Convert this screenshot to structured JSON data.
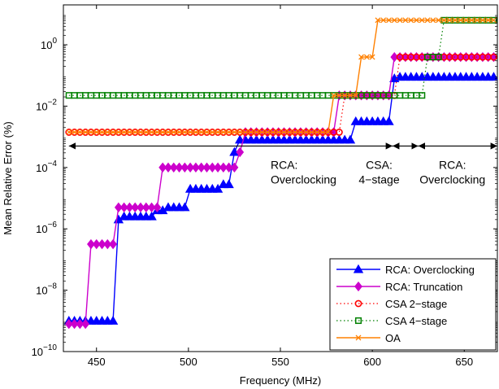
{
  "chart_data": {
    "type": "line",
    "xlabel": "Frequency (MHz)",
    "ylabel": "Mean Relative Error (%)",
    "xlim": [
      432,
      668
    ],
    "ylim_log10": [
      -10,
      1.3
    ],
    "y_scale": "log",
    "grid": false,
    "legend_position": "bottom-right",
    "x_ticks": [
      {
        "value": 450,
        "label": "450"
      },
      {
        "value": 500,
        "label": "500"
      },
      {
        "value": 550,
        "label": "550"
      },
      {
        "value": 600,
        "label": "600"
      },
      {
        "value": 650,
        "label": "650"
      }
    ],
    "y_ticks": [
      {
        "exp": 0,
        "base": "10",
        "label": "0"
      },
      {
        "exp": -2,
        "base": "10",
        "label": "−2"
      },
      {
        "exp": -4,
        "base": "10",
        "label": "−4"
      },
      {
        "exp": -6,
        "base": "10",
        "label": "−6"
      },
      {
        "exp": -8,
        "base": "10",
        "label": "−8"
      },
      {
        "exp": -10,
        "base": "10",
        "label": "−10"
      }
    ],
    "annotations": [
      {
        "id": "rca-overclocking-1",
        "lines": [
          "RCA:",
          "Overclocking"
        ],
        "x": 550,
        "y_exp": -4.05,
        "align": "start",
        "x_offset": -12
      },
      {
        "id": "csa-4stage",
        "lines": [
          "CSA:",
          "4−stage"
        ],
        "x": 609,
        "y_exp": -4.05,
        "align": "middle",
        "x_offset": -12
      },
      {
        "id": "rca-overclocking-2",
        "lines": [
          "RCA:",
          "Overclocking"
        ],
        "x": 648,
        "y_exp": -4.05,
        "align": "middle",
        "x_offset": -10
      }
    ],
    "range_arrows": [
      {
        "from": 435,
        "to": 611,
        "y_exp": -3.3
      },
      {
        "from": 611,
        "to": 625,
        "y_exp": -3.3
      },
      {
        "from": 625,
        "to": 668,
        "y_exp": -3.3
      }
    ],
    "series": [
      {
        "name": "RCA: Overclocking",
        "color": "#0000ff",
        "line_style": "solid",
        "marker": "triangle",
        "x": [
          435,
          438,
          441,
          444,
          447,
          450,
          453,
          456,
          459,
          462,
          465,
          468,
          471,
          474,
          477,
          480,
          483,
          486,
          489,
          492,
          495,
          498,
          501,
          504,
          507,
          510,
          513,
          516,
          519,
          522,
          525,
          528,
          531,
          534,
          537,
          540,
          543,
          546,
          549,
          552,
          555,
          558,
          561,
          564,
          567,
          570,
          573,
          576,
          579,
          582,
          585,
          588,
          591,
          594,
          597,
          600,
          603,
          606,
          609,
          612,
          615,
          618,
          621,
          624,
          627,
          630,
          633,
          636,
          639,
          642,
          645,
          648,
          651,
          654,
          657,
          660,
          663,
          666
        ],
        "y_exp": [
          -9,
          -9,
          -9,
          -9,
          -9,
          -9,
          -9,
          -9,
          -9,
          -5.7,
          -5.6,
          -5.6,
          -5.6,
          -5.6,
          -5.6,
          -5.6,
          -5.4,
          -5.4,
          -5.3,
          -5.3,
          -5.3,
          -5.3,
          -4.7,
          -4.7,
          -4.7,
          -4.7,
          -4.7,
          -4.7,
          -4.55,
          -4.55,
          -3.5,
          -3.1,
          -3.1,
          -3.1,
          -3.1,
          -3.1,
          -3.1,
          -3.1,
          -3.1,
          -3.1,
          -3.1,
          -3.1,
          -3.1,
          -3.1,
          -3.1,
          -3.1,
          -3.1,
          -3.1,
          -3.1,
          -3.1,
          -3.1,
          -3.1,
          -2.5,
          -2.5,
          -2.5,
          -2.5,
          -2.5,
          -2.5,
          -2.5,
          -1.1,
          -1.05,
          -1.05,
          -1.05,
          -1.05,
          -1.05,
          -1.05,
          -1.05,
          -1.05,
          -1.05,
          -1.05,
          -1.05,
          -1.05,
          -1.05,
          -1.05,
          -1.05,
          -1.05,
          -1.05,
          -1.05
        ]
      },
      {
        "name": "RCA: Truncation",
        "color": "#cc00cc",
        "line_style": "solid",
        "marker": "diamond",
        "x": [
          435,
          438,
          441,
          444,
          447,
          450,
          453,
          456,
          459,
          462,
          465,
          468,
          471,
          474,
          477,
          480,
          483,
          486,
          489,
          492,
          495,
          498,
          501,
          504,
          507,
          510,
          513,
          516,
          519,
          522,
          525,
          528,
          531,
          534,
          537,
          540,
          543,
          546,
          549,
          552,
          555,
          558,
          561,
          564,
          567,
          570,
          573,
          576,
          579,
          582,
          585,
          588,
          591,
          594,
          597,
          600,
          603,
          606,
          609,
          612,
          615,
          618,
          621,
          624,
          627,
          630,
          633,
          636,
          639,
          642,
          645,
          648,
          651,
          654,
          657,
          660,
          663,
          666
        ],
        "y_exp": [
          -9.1,
          -9.1,
          -9.1,
          -9.1,
          -6.5,
          -6.5,
          -6.5,
          -6.5,
          -6.5,
          -5.3,
          -5.3,
          -5.3,
          -5.3,
          -5.3,
          -5.3,
          -5.3,
          -5.3,
          -4,
          -4,
          -4,
          -4,
          -4,
          -4,
          -4,
          -4,
          -4,
          -4,
          -4,
          -4,
          -4,
          -4,
          -3.5,
          -2.85,
          -2.85,
          -2.85,
          -2.85,
          -2.85,
          -2.85,
          -2.85,
          -2.85,
          -2.85,
          -2.85,
          -2.85,
          -2.85,
          -2.85,
          -2.85,
          -2.85,
          -2.85,
          -2.85,
          -1.65,
          -1.65,
          -1.65,
          -1.65,
          -1.65,
          -1.65,
          -1.65,
          -1.65,
          -1.65,
          -1.65,
          -0.4,
          -0.4,
          -0.4,
          -0.4,
          -0.4,
          -0.4,
          -0.4,
          -0.4,
          -0.4,
          -0.4,
          -0.4,
          -0.4,
          -0.4,
          -0.4,
          -0.4,
          -0.4,
          -0.4,
          -0.4,
          -0.4
        ]
      },
      {
        "name": "CSA 2−stage",
        "color": "#ff0000",
        "line_style": "dotted",
        "marker": "circle",
        "x": [
          435,
          438,
          441,
          444,
          447,
          450,
          453,
          456,
          459,
          462,
          465,
          468,
          471,
          474,
          477,
          480,
          483,
          486,
          489,
          492,
          495,
          498,
          501,
          504,
          507,
          510,
          513,
          516,
          519,
          522,
          525,
          528,
          531,
          534,
          537,
          540,
          543,
          546,
          549,
          552,
          555,
          558,
          561,
          564,
          567,
          570,
          573,
          576,
          579,
          582,
          585,
          588,
          591,
          594,
          597,
          600,
          603,
          606,
          609,
          612,
          615,
          618,
          621,
          624,
          627,
          630,
          633,
          636,
          639,
          642,
          645,
          648,
          651,
          654,
          657,
          660,
          663,
          666
        ],
        "y_exp": [
          -2.85,
          -2.85,
          -2.85,
          -2.85,
          -2.85,
          -2.85,
          -2.85,
          -2.85,
          -2.85,
          -2.85,
          -2.85,
          -2.85,
          -2.85,
          -2.85,
          -2.85,
          -2.85,
          -2.85,
          -2.85,
          -2.85,
          -2.85,
          -2.85,
          -2.85,
          -2.85,
          -2.85,
          -2.85,
          -2.85,
          -2.85,
          -2.85,
          -2.85,
          -2.85,
          -2.85,
          -2.85,
          -2.85,
          -2.85,
          -2.85,
          -2.85,
          -2.85,
          -2.85,
          -2.85,
          -2.85,
          -2.85,
          -2.85,
          -2.85,
          -2.85,
          -2.85,
          -2.85,
          -2.85,
          -2.85,
          -2.85,
          -2.85,
          -1.65,
          -1.65,
          -1.65,
          -1.65,
          -1.65,
          -1.65,
          -1.65,
          -1.65,
          -1.65,
          -1.65,
          -0.4,
          -0.4,
          -0.4,
          -0.4,
          -0.4,
          -0.4,
          -0.4,
          -0.4,
          -0.4,
          -0.4,
          -0.4,
          -0.4,
          -0.4,
          -0.4,
          -0.4,
          -0.4,
          -0.4,
          -0.4
        ]
      },
      {
        "name": "CSA 4−stage",
        "color": "#008000",
        "line_style": "dotted",
        "marker": "square",
        "x": [
          435,
          438,
          441,
          444,
          447,
          450,
          453,
          456,
          459,
          462,
          465,
          468,
          471,
          474,
          477,
          480,
          483,
          486,
          489,
          492,
          495,
          498,
          501,
          504,
          507,
          510,
          513,
          516,
          519,
          522,
          525,
          528,
          531,
          534,
          537,
          540,
          543,
          546,
          549,
          552,
          555,
          558,
          561,
          564,
          567,
          570,
          573,
          576,
          579,
          582,
          585,
          588,
          591,
          594,
          597,
          600,
          603,
          606,
          609,
          612,
          615,
          618,
          621,
          624,
          627,
          630,
          633,
          636,
          639,
          642,
          645,
          648,
          651,
          654,
          657,
          660,
          663,
          666
        ],
        "y_exp": [
          -1.65,
          -1.65,
          -1.65,
          -1.65,
          -1.65,
          -1.65,
          -1.65,
          -1.65,
          -1.65,
          -1.65,
          -1.65,
          -1.65,
          -1.65,
          -1.65,
          -1.65,
          -1.65,
          -1.65,
          -1.65,
          -1.65,
          -1.65,
          -1.65,
          -1.65,
          -1.65,
          -1.65,
          -1.65,
          -1.65,
          -1.65,
          -1.65,
          -1.65,
          -1.65,
          -1.65,
          -1.65,
          -1.65,
          -1.65,
          -1.65,
          -1.65,
          -1.65,
          -1.65,
          -1.65,
          -1.65,
          -1.65,
          -1.65,
          -1.65,
          -1.65,
          -1.65,
          -1.65,
          -1.65,
          -1.65,
          -1.65,
          -1.65,
          -1.65,
          -1.65,
          -1.65,
          -1.65,
          -1.65,
          -1.65,
          -1.65,
          -1.65,
          -1.65,
          -1.65,
          -1.65,
          -1.65,
          -1.65,
          -1.65,
          -1.65,
          -0.4,
          -0.4,
          -0.4,
          0.8,
          0.8,
          0.8,
          0.8,
          0.8,
          0.8,
          0.8,
          0.8,
          0.8,
          0.8
        ]
      },
      {
        "name": "OA",
        "color": "#ff8000",
        "line_style": "solid",
        "marker": "x",
        "x": [
          435,
          438,
          441,
          444,
          447,
          450,
          453,
          456,
          459,
          462,
          465,
          468,
          471,
          474,
          477,
          480,
          483,
          486,
          489,
          492,
          495,
          498,
          501,
          504,
          507,
          510,
          513,
          516,
          519,
          522,
          525,
          528,
          531,
          534,
          537,
          540,
          543,
          546,
          549,
          552,
          555,
          558,
          561,
          564,
          567,
          570,
          573,
          576,
          579,
          582,
          585,
          588,
          591,
          594,
          597,
          600,
          603,
          606,
          609,
          612,
          615,
          618,
          621,
          624,
          627,
          630,
          633,
          636,
          639,
          642,
          645,
          648,
          651,
          654,
          657,
          660,
          663,
          666
        ],
        "y_exp": [
          -2.85,
          -2.85,
          -2.85,
          -2.85,
          -2.85,
          -2.85,
          -2.85,
          -2.85,
          -2.85,
          -2.85,
          -2.85,
          -2.85,
          -2.85,
          -2.85,
          -2.85,
          -2.85,
          -2.85,
          -2.85,
          -2.85,
          -2.85,
          -2.85,
          -2.85,
          -2.85,
          -2.85,
          -2.85,
          -2.85,
          -2.85,
          -2.85,
          -2.85,
          -2.85,
          -2.85,
          -2.85,
          -2.85,
          -2.85,
          -2.85,
          -2.85,
          -2.85,
          -2.85,
          -2.85,
          -2.85,
          -2.85,
          -2.85,
          -2.85,
          -2.85,
          -2.85,
          -2.85,
          -2.85,
          -2.85,
          -1.65,
          -1.65,
          -1.65,
          -1.65,
          -1.65,
          -0.4,
          -0.4,
          -0.4,
          0.8,
          0.8,
          0.8,
          0.8,
          0.8,
          0.8,
          0.8,
          0.8,
          0.8,
          0.8,
          0.8,
          0.8,
          0.8,
          0.8,
          0.8,
          0.8,
          0.8,
          0.8,
          0.8,
          0.8,
          0.8,
          0.8
        ]
      }
    ]
  }
}
